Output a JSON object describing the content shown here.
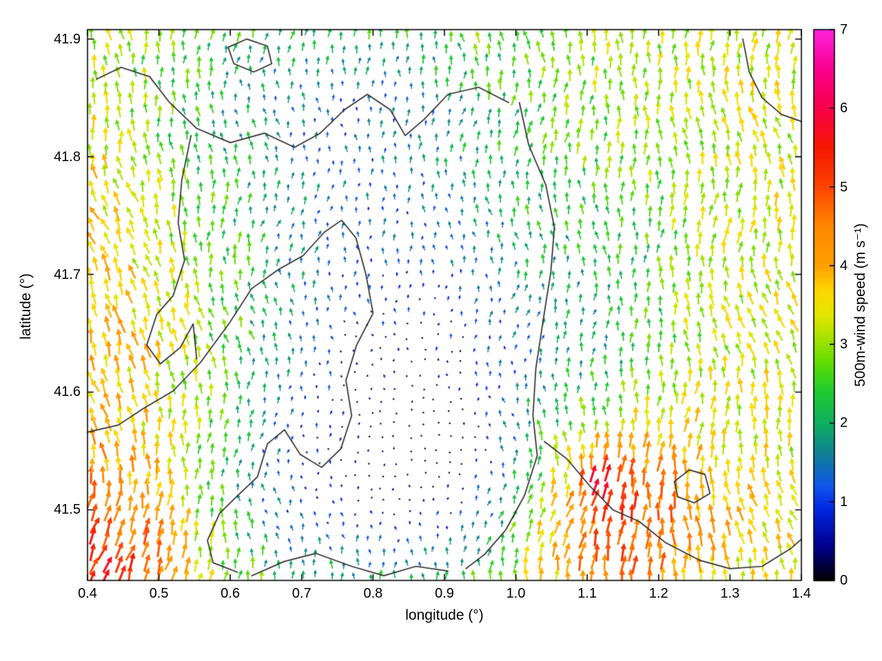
{
  "figure": {
    "background": "#ffffff"
  },
  "chart_data": {
    "type": "quiver",
    "title": "",
    "xlabel": "longitude (°)",
    "ylabel": "latitude (°)",
    "xlim": [
      0.4,
      1.4
    ],
    "ylim": [
      41.44,
      41.908
    ],
    "x_tick_values": [
      0.4,
      0.5,
      0.6,
      0.7,
      0.8,
      0.9,
      1.0,
      1.1,
      1.2,
      1.3,
      1.4
    ],
    "x_tick_labels": [
      "0.4",
      "0.5",
      "0.6",
      "0.7",
      "0.8",
      "0.9",
      "1.0",
      "1.1",
      "1.2",
      "1.3",
      "1.4"
    ],
    "y_tick_values": [
      41.5,
      41.6,
      41.7,
      41.8,
      41.9
    ],
    "y_tick_labels": [
      "41.5",
      "41.6",
      "41.7",
      "41.8",
      "41.9"
    ],
    "axis_color": "#000000",
    "contour_color": "#2b2b2b",
    "colorbar": {
      "label": "500m-wind speed (m s⁻¹)",
      "min": 0,
      "max": 7,
      "tick_values": [
        0,
        1,
        2,
        3,
        4,
        5,
        6,
        7
      ],
      "tick_labels": [
        "0",
        "1",
        "2",
        "3",
        "4",
        "5",
        "6",
        "7"
      ],
      "stops": [
        [
          0.0,
          "#000000"
        ],
        [
          0.45,
          "#000090"
        ],
        [
          0.9,
          "#0026e0"
        ],
        [
          1.2,
          "#1155ee"
        ],
        [
          1.6,
          "#0e7f96"
        ],
        [
          2.0,
          "#0faf60"
        ],
        [
          2.4,
          "#1ecb32"
        ],
        [
          2.8,
          "#66dd00"
        ],
        [
          3.1,
          "#aae300"
        ],
        [
          3.4,
          "#e6e600"
        ],
        [
          3.7,
          "#ffd500"
        ],
        [
          4.0,
          "#ffa000"
        ],
        [
          4.5,
          "#ff8800"
        ],
        [
          5.0,
          "#ff4400"
        ],
        [
          5.5,
          "#f51800"
        ],
        [
          6.0,
          "#f8004c"
        ],
        [
          6.5,
          "#fa0090"
        ],
        [
          7.0,
          "#ff22dd"
        ]
      ]
    },
    "grid": {
      "lon_step": 0.0185,
      "lat_step": 0.0107,
      "jitter": 0.009
    },
    "seed": 20240601,
    "arrow_scale": 5.3,
    "wind_field": {
      "base_speed": 3.3,
      "noise_amp": 0.55,
      "lobes": [
        {
          "cx": 0.84,
          "cy": 41.63,
          "sx": 0.15,
          "sy": 0.095,
          "amp": -2.7
        },
        {
          "cx": 0.72,
          "cy": 41.51,
          "sx": 0.12,
          "sy": 0.06,
          "amp": -1.6
        },
        {
          "cx": 0.93,
          "cy": 41.52,
          "sx": 0.09,
          "sy": 0.06,
          "amp": -1.5
        },
        {
          "cx": 0.75,
          "cy": 41.8,
          "sx": 0.18,
          "sy": 0.07,
          "amp": -1.2
        },
        {
          "cx": 0.72,
          "cy": 41.87,
          "sx": 0.22,
          "sy": 0.05,
          "amp": -0.9
        },
        {
          "cx": 1.13,
          "cy": 41.67,
          "sx": 0.08,
          "sy": 0.09,
          "amp": -0.9
        },
        {
          "cx": 1.13,
          "cy": 41.5,
          "sx": 0.1,
          "sy": 0.06,
          "amp": 2.0
        },
        {
          "cx": 1.12,
          "cy": 41.53,
          "sx": 0.02,
          "sy": 0.015,
          "amp": 1.5
        },
        {
          "cx": 0.42,
          "cy": 41.45,
          "sx": 0.09,
          "sy": 0.06,
          "amp": 1.7
        },
        {
          "cx": 0.4,
          "cy": 41.66,
          "sx": 0.12,
          "sy": 0.2,
          "amp": 0.6
        }
      ],
      "direction_deg": 90,
      "direction_noise": 22,
      "direction_zones": [
        {
          "cx": 0.42,
          "cy": 41.68,
          "sx": 0.1,
          "sy": 0.2,
          "delta": 20
        },
        {
          "cx": 0.44,
          "cy": 41.46,
          "sx": 0.1,
          "sy": 0.06,
          "delta": -30
        },
        {
          "cx": 1.13,
          "cy": 41.5,
          "sx": 0.12,
          "sy": 0.08,
          "delta": -6
        },
        {
          "cx": 1.39,
          "cy": 41.6,
          "sx": 0.07,
          "sy": 0.15,
          "delta": 12
        },
        {
          "cx": 0.52,
          "cy": 41.88,
          "sx": 0.15,
          "sy": 0.05,
          "delta": -8
        }
      ]
    },
    "contours": [
      [
        [
          0.413,
          41.866
        ],
        [
          0.447,
          41.876
        ],
        [
          0.487,
          41.868
        ],
        [
          0.515,
          41.846
        ],
        [
          0.553,
          41.824
        ],
        [
          0.6,
          41.812
        ],
        [
          0.648,
          41.82
        ],
        [
          0.69,
          41.808
        ],
        [
          0.726,
          41.82
        ],
        [
          0.76,
          41.84
        ],
        [
          0.792,
          41.853
        ],
        [
          0.824,
          41.84
        ],
        [
          0.845,
          41.818
        ],
        [
          0.872,
          41.832
        ],
        [
          0.905,
          41.853
        ],
        [
          0.948,
          41.859
        ],
        [
          0.99,
          41.846
        ]
      ],
      [
        [
          0.597,
          41.893
        ],
        [
          0.623,
          41.9
        ],
        [
          0.652,
          41.894
        ],
        [
          0.658,
          41.879
        ],
        [
          0.633,
          41.872
        ],
        [
          0.605,
          41.879
        ],
        [
          0.597,
          41.893
        ]
      ],
      [
        [
          0.545,
          41.818
        ],
        [
          0.532,
          41.78
        ],
        [
          0.527,
          41.744
        ],
        [
          0.536,
          41.712
        ],
        [
          0.52,
          41.682
        ],
        [
          0.497,
          41.666
        ],
        [
          0.483,
          41.64
        ],
        [
          0.502,
          41.624
        ],
        [
          0.53,
          41.638
        ],
        [
          0.548,
          41.658
        ],
        [
          0.553,
          41.628
        ]
      ],
      [
        [
          0.4,
          41.566
        ],
        [
          0.443,
          41.572
        ],
        [
          0.478,
          41.586
        ],
        [
          0.52,
          41.601
        ],
        [
          0.558,
          41.625
        ],
        [
          0.598,
          41.658
        ],
        [
          0.63,
          41.688
        ],
        [
          0.667,
          41.704
        ],
        [
          0.702,
          41.716
        ],
        [
          0.732,
          41.736
        ],
        [
          0.756,
          41.746
        ],
        [
          0.776,
          41.731
        ],
        [
          0.79,
          41.7
        ],
        [
          0.8,
          41.667
        ],
        [
          0.777,
          41.64
        ],
        [
          0.762,
          41.61
        ],
        [
          0.77,
          41.58
        ],
        [
          0.755,
          41.552
        ],
        [
          0.728,
          41.536
        ],
        [
          0.698,
          41.547
        ],
        [
          0.676,
          41.568
        ],
        [
          0.652,
          41.556
        ],
        [
          0.638,
          41.528
        ],
        [
          0.612,
          41.513
        ],
        [
          0.585,
          41.497
        ],
        [
          0.568,
          41.474
        ],
        [
          0.576,
          41.455
        ],
        [
          0.61,
          41.447
        ]
      ],
      [
        [
          0.63,
          41.444
        ],
        [
          0.675,
          41.456
        ],
        [
          0.72,
          41.463
        ],
        [
          0.77,
          41.452
        ],
        [
          0.815,
          41.444
        ],
        [
          0.86,
          41.452
        ],
        [
          0.905,
          41.448
        ]
      ],
      [
        [
          1.005,
          41.846
        ],
        [
          1.018,
          41.81
        ],
        [
          1.042,
          41.776
        ],
        [
          1.054,
          41.74
        ],
        [
          1.049,
          41.702
        ],
        [
          1.038,
          41.66
        ],
        [
          1.028,
          41.62
        ],
        [
          1.024,
          41.58
        ],
        [
          1.03,
          41.546
        ],
        [
          1.012,
          41.512
        ],
        [
          0.986,
          41.483
        ],
        [
          0.956,
          41.462
        ],
        [
          0.93,
          41.45
        ]
      ],
      [
        [
          1.04,
          41.558
        ],
        [
          1.072,
          41.543
        ],
        [
          1.104,
          41.52
        ],
        [
          1.136,
          41.5
        ],
        [
          1.173,
          41.49
        ],
        [
          1.21,
          41.472
        ],
        [
          1.258,
          41.457
        ],
        [
          1.3,
          41.45
        ],
        [
          1.345,
          41.452
        ],
        [
          1.385,
          41.467
        ],
        [
          1.4,
          41.475
        ]
      ],
      [
        [
          1.222,
          41.524
        ],
        [
          1.243,
          41.534
        ],
        [
          1.265,
          41.53
        ],
        [
          1.272,
          41.514
        ],
        [
          1.25,
          41.506
        ],
        [
          1.227,
          41.511
        ],
        [
          1.222,
          41.524
        ]
      ],
      [
        [
          1.318,
          41.9
        ],
        [
          1.327,
          41.872
        ],
        [
          1.345,
          41.85
        ],
        [
          1.372,
          41.836
        ],
        [
          1.4,
          41.83
        ]
      ]
    ]
  }
}
